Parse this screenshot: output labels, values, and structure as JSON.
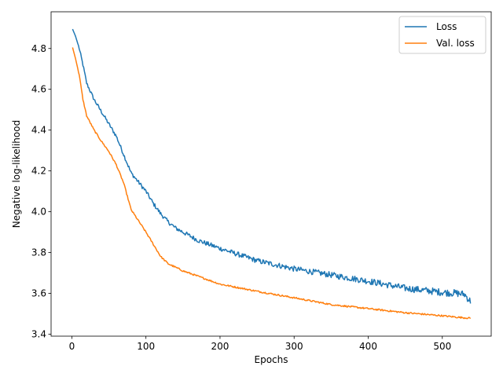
{
  "chart_data": {
    "type": "line",
    "title": "",
    "xlabel": "Epochs",
    "ylabel": "Negative log-likelihood",
    "xlim": [
      -28,
      566
    ],
    "ylim": [
      3.39,
      4.98
    ],
    "xticks": [
      0,
      100,
      200,
      300,
      400,
      500
    ],
    "yticks": [
      3.4,
      3.6,
      3.8,
      4.0,
      4.2,
      4.4,
      4.6,
      4.8
    ],
    "grid": false,
    "legend_position": "top-right",
    "series": [
      {
        "name": "Loss",
        "color": "#1f77b4",
        "noise": 0.013,
        "points": [
          [
            1,
            4.895
          ],
          [
            5,
            4.86
          ],
          [
            10,
            4.8
          ],
          [
            15,
            4.72
          ],
          [
            20,
            4.63
          ],
          [
            30,
            4.55
          ],
          [
            40,
            4.49
          ],
          [
            50,
            4.43
          ],
          [
            60,
            4.37
          ],
          [
            70,
            4.28
          ],
          [
            80,
            4.19
          ],
          [
            90,
            4.145
          ],
          [
            100,
            4.1
          ],
          [
            110,
            4.04
          ],
          [
            120,
            3.99
          ],
          [
            130,
            3.95
          ],
          [
            140,
            3.92
          ],
          [
            150,
            3.9
          ],
          [
            170,
            3.86
          ],
          [
            200,
            3.82
          ],
          [
            250,
            3.76
          ],
          [
            300,
            3.72
          ],
          [
            350,
            3.69
          ],
          [
            400,
            3.66
          ],
          [
            450,
            3.625
          ],
          [
            500,
            3.605
          ],
          [
            520,
            3.6
          ],
          [
            530,
            3.595
          ],
          [
            538,
            3.56
          ]
        ]
      },
      {
        "name": "Val. loss",
        "color": "#ff7f0e",
        "noise": 0.004,
        "points": [
          [
            1,
            4.805
          ],
          [
            5,
            4.75
          ],
          [
            10,
            4.67
          ],
          [
            15,
            4.55
          ],
          [
            20,
            4.47
          ],
          [
            30,
            4.4
          ],
          [
            40,
            4.345
          ],
          [
            50,
            4.295
          ],
          [
            60,
            4.23
          ],
          [
            70,
            4.14
          ],
          [
            80,
            4.01
          ],
          [
            90,
            3.955
          ],
          [
            100,
            3.9
          ],
          [
            110,
            3.84
          ],
          [
            120,
            3.78
          ],
          [
            130,
            3.745
          ],
          [
            150,
            3.71
          ],
          [
            200,
            3.645
          ],
          [
            250,
            3.61
          ],
          [
            300,
            3.578
          ],
          [
            350,
            3.545
          ],
          [
            400,
            3.525
          ],
          [
            450,
            3.505
          ],
          [
            500,
            3.49
          ],
          [
            520,
            3.483
          ],
          [
            538,
            3.478
          ]
        ]
      }
    ]
  }
}
